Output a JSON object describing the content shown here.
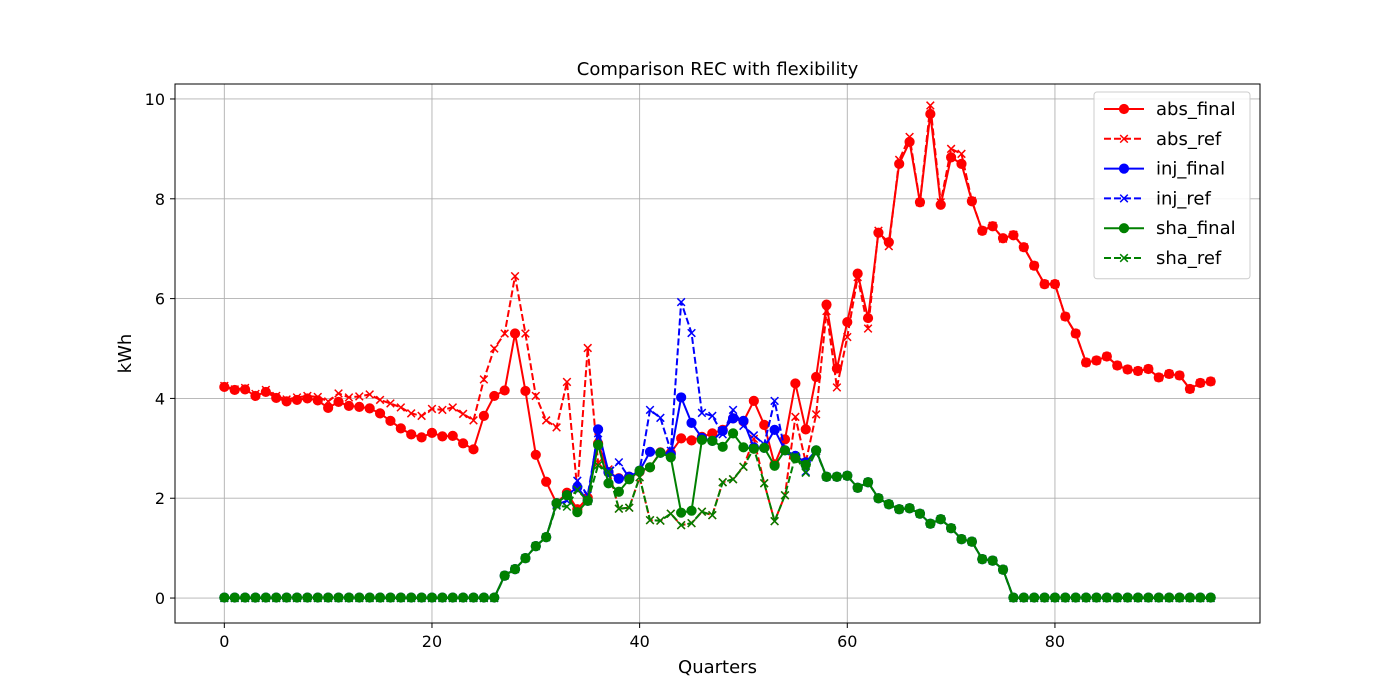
{
  "chart_data": {
    "type": "line",
    "title": "Comparison REC with flexibility",
    "xlabel": "Quarters",
    "ylabel": "kWh",
    "xlim": [
      -4.75,
      99.75
    ],
    "ylim": [
      -0.5,
      10.3
    ],
    "xticks": [
      0,
      20,
      40,
      60,
      80
    ],
    "yticks": [
      0,
      2,
      4,
      6,
      8,
      10
    ],
    "grid": true,
    "legend_position": "top-right",
    "series": [
      {
        "name": "abs_final",
        "color": "#ff0000",
        "linestyle": "solid",
        "marker": "circle",
        "values": [
          4.23,
          4.17,
          4.18,
          4.05,
          4.13,
          4.01,
          3.94,
          3.97,
          4.0,
          3.96,
          3.81,
          3.93,
          3.85,
          3.83,
          3.8,
          3.7,
          3.55,
          3.4,
          3.28,
          3.22,
          3.31,
          3.24,
          3.25,
          3.1,
          2.98,
          3.65,
          4.05,
          4.16,
          5.3,
          4.15,
          2.87,
          2.33,
          1.9,
          2.11,
          1.78,
          2.01,
          3.1,
          2.52,
          2.4,
          2.43,
          2.53,
          2.62,
          2.92,
          2.91,
          3.2,
          3.16,
          3.23,
          3.3,
          3.37,
          3.6,
          3.54,
          3.95,
          3.47,
          2.68,
          3.18,
          4.3,
          3.38,
          4.43,
          5.88,
          4.6,
          5.53,
          6.5,
          5.61,
          7.32,
          7.13,
          8.7,
          9.14,
          7.93,
          9.7,
          7.88,
          8.83,
          8.7,
          7.95,
          7.36,
          7.45,
          7.21,
          7.27,
          7.03,
          6.66,
          6.29,
          6.29,
          5.64,
          5.3,
          4.72,
          4.76,
          4.84,
          4.66,
          4.58,
          4.55,
          4.59,
          4.42,
          4.49,
          4.46,
          4.19,
          4.31,
          4.34
        ]
      },
      {
        "name": "abs_ref",
        "color": "#ff0000",
        "linestyle": "dashed",
        "marker": "x",
        "values": [
          4.25,
          4.18,
          4.21,
          4.09,
          4.17,
          4.05,
          3.98,
          4.02,
          4.05,
          4.03,
          3.94,
          4.1,
          4.02,
          4.04,
          4.08,
          3.97,
          3.9,
          3.82,
          3.7,
          3.65,
          3.79,
          3.77,
          3.82,
          3.69,
          3.56,
          4.38,
          5.0,
          5.3,
          6.45,
          5.3,
          4.05,
          3.56,
          3.42,
          4.33,
          2.17,
          5.01,
          2.71,
          2.58,
          1.79,
          1.81,
          2.42,
          1.56,
          1.55,
          1.69,
          1.46,
          1.5,
          1.73,
          1.66,
          2.32,
          2.38,
          2.63,
          3.19,
          2.3,
          1.54,
          2.06,
          3.63,
          2.72,
          3.68,
          5.75,
          4.22,
          5.23,
          6.43,
          5.4,
          7.36,
          7.05,
          8.78,
          9.24,
          7.93,
          9.87,
          7.93,
          9.0,
          8.9,
          7.96,
          7.36,
          7.46,
          7.2,
          7.28,
          7.03,
          6.66,
          6.29,
          6.29,
          5.64,
          5.3,
          4.72,
          4.76,
          4.84,
          4.66,
          4.58,
          4.55,
          4.59,
          4.42,
          4.49,
          4.46,
          4.19,
          4.31,
          4.34
        ]
      },
      {
        "name": "inj_final",
        "color": "#0000ff",
        "linestyle": "solid",
        "marker": "circle",
        "values": [
          0.01,
          0.01,
          0.01,
          0.01,
          0.01,
          0.01,
          0.01,
          0.01,
          0.01,
          0.01,
          0.01,
          0.01,
          0.01,
          0.01,
          0.01,
          0.01,
          0.01,
          0.01,
          0.01,
          0.01,
          0.01,
          0.01,
          0.01,
          0.01,
          0.01,
          0.01,
          0.01,
          0.45,
          0.58,
          0.8,
          1.04,
          1.22,
          1.9,
          2.06,
          2.22,
          1.95,
          3.38,
          2.52,
          2.39,
          2.43,
          2.55,
          2.93,
          2.91,
          2.88,
          4.02,
          3.51,
          3.21,
          3.15,
          3.35,
          3.6,
          3.55,
          3.02,
          3.01,
          3.37,
          2.96,
          2.85,
          2.72,
          2.96,
          2.43,
          2.43,
          2.45,
          2.21,
          2.32,
          2.0,
          1.88,
          1.78,
          1.8,
          1.69,
          1.49,
          1.58,
          1.4,
          1.18,
          1.13,
          0.78,
          0.75,
          0.57,
          0.01,
          0.01,
          0.01,
          0.01,
          0.01,
          0.01,
          0.01,
          0.01,
          0.01,
          0.01,
          0.01,
          0.01,
          0.01,
          0.01,
          0.01,
          0.01,
          0.01,
          0.01,
          0.01,
          0.01
        ]
      },
      {
        "name": "inj_ref",
        "color": "#0000ff",
        "linestyle": "dashed",
        "marker": "x",
        "values": [
          0.0,
          0.0,
          0.0,
          0.0,
          0.0,
          0.0,
          0.0,
          0.0,
          0.0,
          0.0,
          0.0,
          0.0,
          0.0,
          0.0,
          0.0,
          0.0,
          0.0,
          0.0,
          0.0,
          0.0,
          0.0,
          0.0,
          0.0,
          0.0,
          0.0,
          0.0,
          0.0,
          0.45,
          0.58,
          0.8,
          1.04,
          1.22,
          1.87,
          1.95,
          2.35,
          2.06,
          3.3,
          2.53,
          2.72,
          2.41,
          2.55,
          3.77,
          3.61,
          2.95,
          5.93,
          5.31,
          3.71,
          3.65,
          3.28,
          3.77,
          3.45,
          3.26,
          3.08,
          3.95,
          2.94,
          2.84,
          2.53,
          2.94,
          2.43,
          2.43,
          2.45,
          2.21,
          2.32,
          2.0,
          1.88,
          1.78,
          1.8,
          1.69,
          1.49,
          1.58,
          1.4,
          1.18,
          1.13,
          0.78,
          0.75,
          0.57,
          0.0,
          0.0,
          0.0,
          0.0,
          0.0,
          0.0,
          0.0,
          0.0,
          0.0,
          0.0,
          0.0,
          0.0,
          0.0,
          0.0,
          0.0,
          0.0,
          0.0,
          0.0,
          0.0,
          0.0
        ]
      },
      {
        "name": "sha_final",
        "color": "#008000",
        "linestyle": "solid",
        "marker": "circle",
        "values": [
          0.01,
          0.01,
          0.01,
          0.01,
          0.01,
          0.01,
          0.01,
          0.01,
          0.01,
          0.01,
          0.01,
          0.01,
          0.01,
          0.01,
          0.01,
          0.01,
          0.01,
          0.01,
          0.01,
          0.01,
          0.01,
          0.01,
          0.01,
          0.01,
          0.01,
          0.01,
          0.01,
          0.45,
          0.58,
          0.8,
          1.04,
          1.22,
          1.9,
          2.06,
          1.72,
          1.95,
          3.07,
          2.3,
          2.13,
          2.38,
          2.55,
          2.62,
          2.91,
          2.82,
          1.71,
          1.75,
          3.17,
          3.15,
          3.03,
          3.3,
          3.02,
          2.99,
          3.01,
          2.65,
          2.96,
          2.8,
          2.67,
          2.96,
          2.43,
          2.43,
          2.45,
          2.21,
          2.32,
          2.0,
          1.88,
          1.78,
          1.8,
          1.69,
          1.49,
          1.58,
          1.4,
          1.18,
          1.13,
          0.78,
          0.75,
          0.57,
          0.01,
          0.01,
          0.01,
          0.01,
          0.01,
          0.01,
          0.01,
          0.01,
          0.01,
          0.01,
          0.01,
          0.01,
          0.01,
          0.01,
          0.01,
          0.01,
          0.01,
          0.01,
          0.01,
          0.01
        ]
      },
      {
        "name": "sha_ref",
        "color": "#008000",
        "linestyle": "dashed",
        "marker": "x",
        "values": [
          0.0,
          0.0,
          0.0,
          0.0,
          0.0,
          0.0,
          0.0,
          0.0,
          0.0,
          0.0,
          0.0,
          0.0,
          0.0,
          0.0,
          0.0,
          0.0,
          0.0,
          0.0,
          0.0,
          0.0,
          0.0,
          0.0,
          0.0,
          0.0,
          0.0,
          0.0,
          0.0,
          0.45,
          0.58,
          0.8,
          1.04,
          1.22,
          1.85,
          1.83,
          2.17,
          1.94,
          2.66,
          2.53,
          1.79,
          1.81,
          2.42,
          1.56,
          1.55,
          1.69,
          1.46,
          1.5,
          1.73,
          1.66,
          2.32,
          2.38,
          2.63,
          3.0,
          2.3,
          1.54,
          2.06,
          2.84,
          2.51,
          2.94,
          2.43,
          2.43,
          2.45,
          2.21,
          2.32,
          2.0,
          1.88,
          1.78,
          1.8,
          1.69,
          1.49,
          1.58,
          1.4,
          1.18,
          1.13,
          0.78,
          0.75,
          0.57,
          0.0,
          0.0,
          0.0,
          0.0,
          0.0,
          0.0,
          0.0,
          0.0,
          0.0,
          0.0,
          0.0,
          0.0,
          0.0,
          0.0,
          0.0,
          0.0,
          0.0,
          0.0,
          0.0,
          0.0
        ]
      }
    ]
  }
}
